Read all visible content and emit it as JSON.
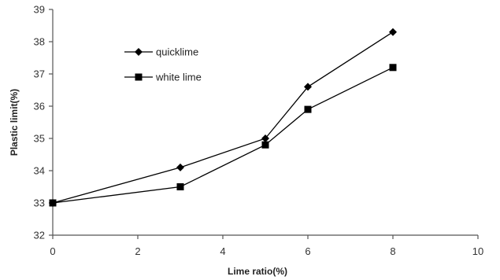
{
  "chart_data": {
    "type": "line",
    "title": "",
    "xlabel": "Lime ratio(%)",
    "ylabel": "Plastic limit(%)",
    "xlim": [
      0,
      10
    ],
    "ylim": [
      32,
      39
    ],
    "xticks": [
      0,
      2,
      4,
      6,
      8,
      10
    ],
    "yticks": [
      32,
      33,
      34,
      35,
      36,
      37,
      38,
      39
    ],
    "grid": false,
    "legend_position": "top-left",
    "series": [
      {
        "name": "quicklime",
        "marker": "diamond",
        "color": "#000000",
        "x": [
          0,
          3,
          5,
          6,
          8
        ],
        "y": [
          33.0,
          34.1,
          35.0,
          36.6,
          38.3
        ]
      },
      {
        "name": "white lime",
        "marker": "square",
        "color": "#000000",
        "x": [
          0,
          3,
          5,
          6,
          8
        ],
        "y": [
          33.0,
          33.5,
          34.8,
          35.9,
          37.2
        ]
      }
    ]
  }
}
